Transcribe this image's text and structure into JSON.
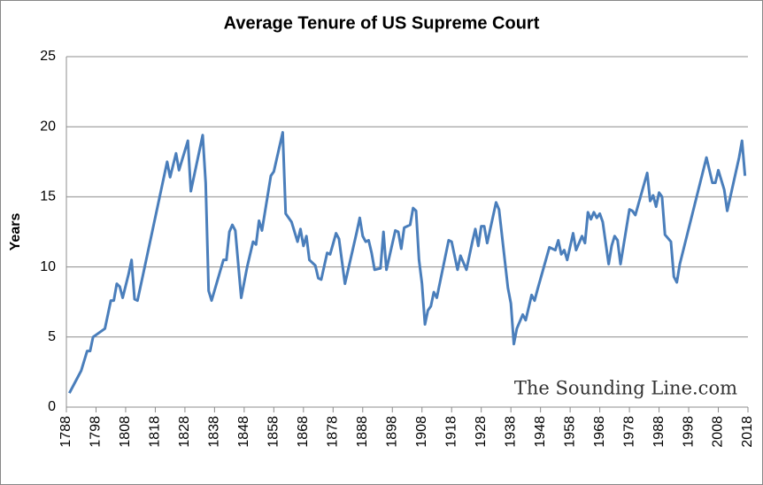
{
  "chart_data": {
    "type": "line",
    "title": "Average Tenure of US Supreme Court",
    "y_label": "Years",
    "annotation": "The Sounding Line.com",
    "xlim": [
      1788,
      2018
    ],
    "xticks": [
      1788,
      1798,
      1808,
      1818,
      1828,
      1838,
      1848,
      1858,
      1868,
      1878,
      1888,
      1898,
      1908,
      1918,
      1928,
      1938,
      1948,
      1958,
      1968,
      1978,
      1988,
      1998,
      2008,
      2018
    ],
    "ylim": [
      0,
      25
    ],
    "yticks": [
      0,
      5,
      10,
      15,
      20,
      25
    ],
    "grid": true,
    "x": [
      1789,
      1791,
      1793,
      1795,
      1796,
      1797,
      1799,
      1801,
      1803,
      1804,
      1805,
      1806,
      1807,
      1809,
      1810,
      1811,
      1812,
      1822,
      1823,
      1825,
      1826,
      1829,
      1830,
      1833,
      1834,
      1835,
      1836,
      1837,
      1841,
      1842,
      1843,
      1844,
      1845,
      1847,
      1849,
      1851,
      1852,
      1853,
      1854,
      1857,
      1858,
      1861,
      1862,
      1864,
      1866,
      1867,
      1868,
      1869,
      1870,
      1872,
      1873,
      1874,
      1876,
      1877,
      1879,
      1880,
      1882,
      1886,
      1887,
      1888,
      1889,
      1890,
      1891,
      1892,
      1894,
      1895,
      1896,
      1899,
      1900,
      1901,
      1902,
      1904,
      1905,
      1906,
      1907,
      1908,
      1909,
      1910,
      1911,
      1912,
      1913,
      1917,
      1918,
      1920,
      1921,
      1923,
      1925,
      1926,
      1927,
      1928,
      1929,
      1930,
      1933,
      1934,
      1937,
      1938,
      1939,
      1940,
      1942,
      1943,
      1945,
      1946,
      1947,
      1951,
      1953,
      1954,
      1955,
      1956,
      1957,
      1959,
      1960,
      1962,
      1963,
      1964,
      1965,
      1966,
      1967,
      1968,
      1969,
      1971,
      1972,
      1973,
      1974,
      1975,
      1978,
      1979,
      1980,
      1984,
      1985,
      1986,
      1987,
      1988,
      1989,
      1990,
      1992,
      1993,
      1994,
      1995,
      2004,
      2006,
      2007,
      2008,
      2010,
      2011,
      2015,
      2016,
      2017
    ],
    "series": [
      {
        "name": "Average Tenure",
        "color": "#4a7ebb",
        "values": [
          1.0,
          1.8,
          2.6,
          4.0,
          4.0,
          5.0,
          5.3,
          5.6,
          7.6,
          7.6,
          8.8,
          8.6,
          7.8,
          9.5,
          10.5,
          7.7,
          7.6,
          17.5,
          16.4,
          18.1,
          16.9,
          19.0,
          15.4,
          18.4,
          19.4,
          16.0,
          8.3,
          7.6,
          10.5,
          10.5,
          12.5,
          13.0,
          12.6,
          7.8,
          10.0,
          11.8,
          11.6,
          13.3,
          12.6,
          16.5,
          16.8,
          19.6,
          13.8,
          13.2,
          11.8,
          12.7,
          11.5,
          12.2,
          10.5,
          10.1,
          9.2,
          9.1,
          11.0,
          10.9,
          12.4,
          12.0,
          8.8,
          12.5,
          13.5,
          12.2,
          11.8,
          11.9,
          11.0,
          9.8,
          9.9,
          12.5,
          9.8,
          12.6,
          12.5,
          11.3,
          12.8,
          13.0,
          14.2,
          14.0,
          10.5,
          8.8,
          5.9,
          6.9,
          7.2,
          8.2,
          7.8,
          11.9,
          11.8,
          9.8,
          10.8,
          9.8,
          11.8,
          12.7,
          11.5,
          12.9,
          12.9,
          11.7,
          14.6,
          14.1,
          8.5,
          7.4,
          4.5,
          5.6,
          6.6,
          6.2,
          8.0,
          7.6,
          8.4,
          11.4,
          11.2,
          11.9,
          10.9,
          11.2,
          10.5,
          12.4,
          11.2,
          12.2,
          11.7,
          13.9,
          13.4,
          13.9,
          13.5,
          13.8,
          13.2,
          10.2,
          11.5,
          12.2,
          11.9,
          10.2,
          14.1,
          14.0,
          13.7,
          16.7,
          14.7,
          15.1,
          14.3,
          15.3,
          15.0,
          12.3,
          11.8,
          9.3,
          8.9,
          10.2,
          17.8,
          16.0,
          16.0,
          16.9,
          15.5,
          14.0,
          17.8,
          19.0,
          16.5
        ]
      }
    ]
  }
}
